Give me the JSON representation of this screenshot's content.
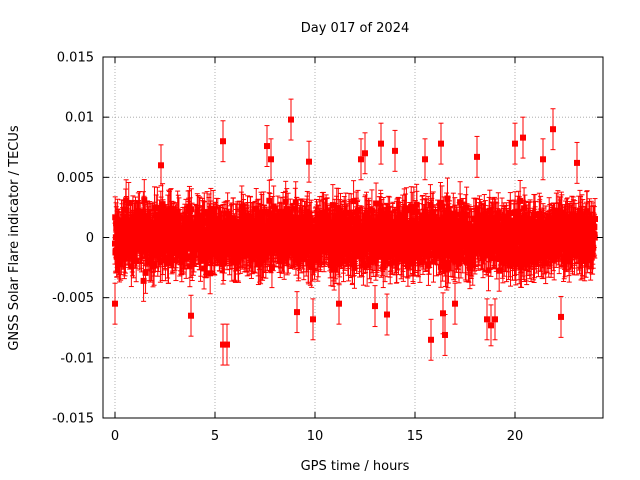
{
  "chart_data": {
    "type": "scatter",
    "title": "Day 017 of 2024",
    "xlabel": "GPS time / hours",
    "ylabel": "GNSS Solar Flare indicator / TECUs",
    "xlim": [
      -0.6,
      24.4
    ],
    "ylim": [
      -0.015,
      0.015
    ],
    "xticks": [
      0,
      5,
      10,
      15,
      20
    ],
    "xtick_labels": [
      "0",
      "5",
      "10",
      "15",
      "20"
    ],
    "yticks": [
      -0.015,
      -0.01,
      -0.005,
      0,
      0.005,
      0.01,
      0.015
    ],
    "ytick_labels": [
      "-0.015",
      "-0.01",
      "-0.005",
      "0",
      "0.005",
      "0.01",
      "0.015"
    ],
    "grid": true,
    "legend": "none",
    "colors": {
      "series": "#ff0000",
      "grid": "#a0a0a0",
      "axis": "#000000"
    },
    "series": [
      {
        "marker": "square",
        "error_bars": true,
        "x_range": [
          0,
          24
        ],
        "core_band": [
          -0.005,
          0.005
        ],
        "outliers": [
          {
            "x": 0.0,
            "y": -0.0055
          },
          {
            "x": 2.3,
            "y": 0.006
          },
          {
            "x": 3.8,
            "y": -0.0065
          },
          {
            "x": 5.4,
            "y": -0.0089
          },
          {
            "x": 5.6,
            "y": -0.0089
          },
          {
            "x": 5.4,
            "y": 0.008
          },
          {
            "x": 7.6,
            "y": 0.0076
          },
          {
            "x": 7.8,
            "y": 0.0065
          },
          {
            "x": 8.8,
            "y": 0.0098
          },
          {
            "x": 9.1,
            "y": -0.0062
          },
          {
            "x": 9.7,
            "y": 0.0063
          },
          {
            "x": 9.9,
            "y": -0.0068
          },
          {
            "x": 11.2,
            "y": -0.0055
          },
          {
            "x": 12.3,
            "y": 0.0065
          },
          {
            "x": 12.5,
            "y": 0.007
          },
          {
            "x": 13.0,
            "y": -0.0057
          },
          {
            "x": 13.3,
            "y": 0.0078
          },
          {
            "x": 13.6,
            "y": -0.0064
          },
          {
            "x": 14.0,
            "y": 0.0072
          },
          {
            "x": 15.5,
            "y": 0.0065
          },
          {
            "x": 15.8,
            "y": -0.0085
          },
          {
            "x": 16.3,
            "y": 0.0078
          },
          {
            "x": 16.4,
            "y": -0.0063
          },
          {
            "x": 16.5,
            "y": -0.0081
          },
          {
            "x": 17.0,
            "y": -0.0055
          },
          {
            "x": 18.1,
            "y": 0.0067
          },
          {
            "x": 18.6,
            "y": -0.0068
          },
          {
            "x": 18.8,
            "y": -0.0073
          },
          {
            "x": 19.0,
            "y": -0.0068
          },
          {
            "x": 20.0,
            "y": 0.0078
          },
          {
            "x": 20.4,
            "y": 0.0083
          },
          {
            "x": 21.4,
            "y": 0.0065
          },
          {
            "x": 21.9,
            "y": 0.009
          },
          {
            "x": 22.3,
            "y": -0.0066
          },
          {
            "x": 23.1,
            "y": 0.0062
          }
        ]
      }
    ]
  }
}
